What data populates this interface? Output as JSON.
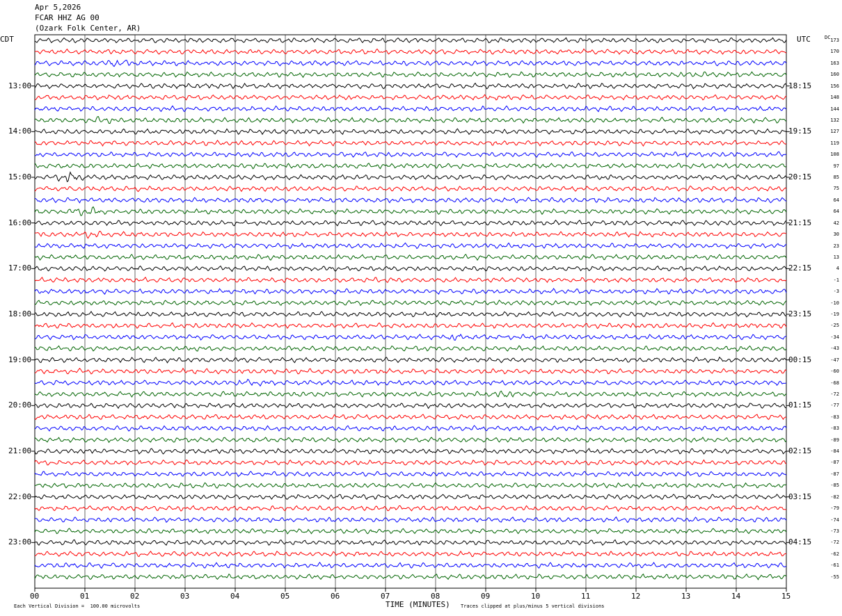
{
  "header": {
    "date": "Apr 5,2026",
    "station": "FCAR HHZ AG 00",
    "location": "(Ozark Folk Center, AR)"
  },
  "left_tz": "CDT",
  "right_tz": "UTC",
  "dc_label": "DC",
  "footer": {
    "scale_note": "Each Vertical Division =  100.00 microvolts",
    "clip_note": "Traces clipped at plus/minus 5 vertical divisions",
    "xlabel": "TIME (MINUTES)"
  },
  "colors": {
    "black": "#000000",
    "red": "#ff0000",
    "blue": "#0000ff",
    "green": "#006400",
    "grid": "#000000"
  },
  "chart_data": {
    "type": "line",
    "title": "FCAR HHZ AG 00",
    "xlabel": "TIME (MINUTES)",
    "xlim": [
      0,
      15
    ],
    "x_ticks": [
      "00",
      "01",
      "02",
      "03",
      "04",
      "05",
      "06",
      "07",
      "08",
      "09",
      "10",
      "11",
      "12",
      "13",
      "14",
      "15"
    ],
    "left_hour_labels": [
      "13:00",
      "14:00",
      "15:00",
      "16:00",
      "17:00",
      "18:00",
      "19:00",
      "20:00",
      "21:00",
      "22:00",
      "23:00"
    ],
    "right_hour_labels": [
      "18:15",
      "19:15",
      "20:15",
      "21:15",
      "22:15",
      "23:15",
      "00:15",
      "01:15",
      "02:15",
      "03:15",
      "04:15"
    ],
    "trace_colors": [
      "black",
      "red",
      "blue",
      "green"
    ],
    "dc_offsets": [
      "173",
      "170",
      "163",
      "160",
      "156",
      "148",
      "144",
      "132",
      "127",
      "119",
      "108",
      "97",
      "85",
      "75",
      "64",
      "64",
      "42",
      "30",
      "23",
      "13",
      "4",
      "-1",
      "-3",
      "-10",
      "-19",
      "-25",
      "-34",
      "-43",
      "-47",
      "-60",
      "-68",
      "-72",
      "-77",
      "-83",
      "-83",
      "-89",
      "-84",
      "-87",
      "-87",
      "-85",
      "-82",
      "-79",
      "-74",
      "-73",
      "-72",
      "-62",
      "-61",
      "-55"
    ],
    "events": [
      {
        "trace": 12,
        "start_min": 0.35,
        "end_min": 1.4,
        "amp": 2.4
      },
      {
        "trace": 15,
        "start_min": 0.6,
        "end_min": 1.9,
        "amp": 1.9
      },
      {
        "trace": 17,
        "start_min": 0.9,
        "end_min": 1.8,
        "amp": 1.6
      },
      {
        "trace": 2,
        "start_min": 1.3,
        "end_min": 2.4,
        "amp": 1.5
      },
      {
        "trace": 31,
        "start_min": 9.0,
        "end_min": 10.1,
        "amp": 1.7
      },
      {
        "trace": 26,
        "start_min": 8.2,
        "end_min": 8.9,
        "amp": 1.5
      },
      {
        "trace": 30,
        "start_min": 3.9,
        "end_min": 5.2,
        "amp": 1.4
      },
      {
        "trace": 3,
        "start_min": 12.8,
        "end_min": 14.0,
        "amp": 1.4
      },
      {
        "trace": 7,
        "start_min": 1.1,
        "end_min": 1.9,
        "amp": 1.5
      },
      {
        "trace": 37,
        "start_min": 11.0,
        "end_min": 11.6,
        "amp": 1.4
      }
    ]
  }
}
